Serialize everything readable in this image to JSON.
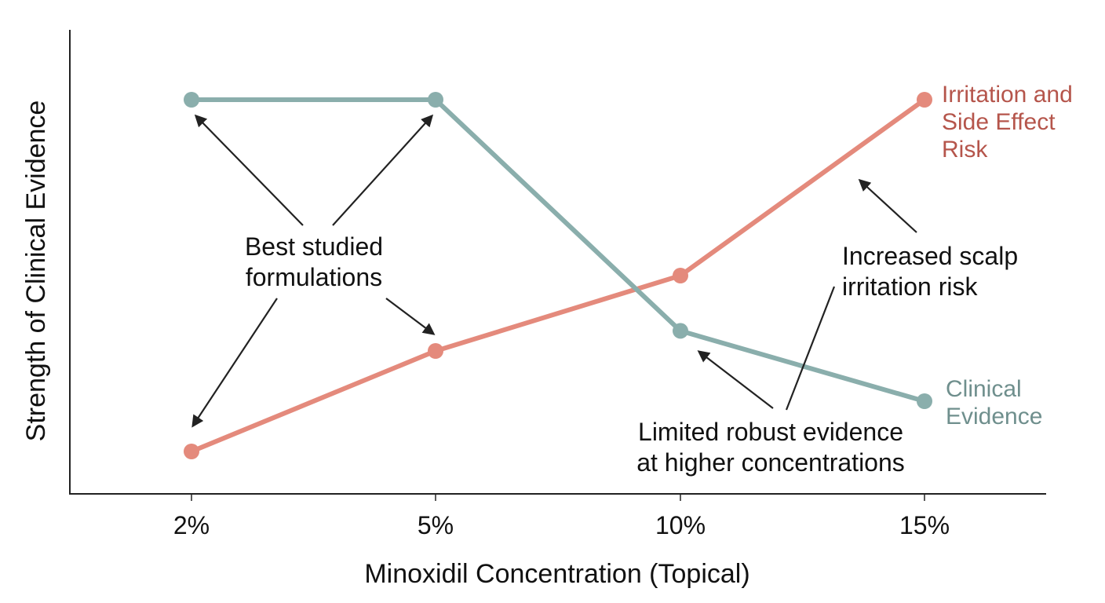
{
  "chart_data": {
    "type": "line",
    "categories": [
      "2%",
      "5%",
      "10%",
      "15%"
    ],
    "xlabel": "Minoxidil Concentration (Topical)",
    "ylabel": "Strength of Clinical Evidence",
    "ylim": [
      0,
      10
    ],
    "grid": false,
    "series": [
      {
        "name": "Clinical Evidence",
        "label_lines": [
          "Clinical",
          "Evidence"
        ],
        "color": "#8aaeac",
        "values": [
          9.0,
          9.0,
          4.4,
          3.0
        ]
      },
      {
        "name": "Irritation and Side Effect Risk",
        "label_lines": [
          "Irritation and",
          "Side Effect",
          "Risk"
        ],
        "color": "#e48a7c",
        "values": [
          2.0,
          4.0,
          5.5,
          9.0
        ]
      }
    ],
    "annotations": [
      {
        "lines": [
          "Best studied",
          "formulations"
        ]
      },
      {
        "lines": [
          "Increased scalp",
          "irritation risk"
        ]
      },
      {
        "lines": [
          "Limited robust evidence",
          "at higher concentrations"
        ]
      }
    ]
  },
  "colors": {
    "axis": "#222222",
    "evidence_label": "#6f8f8d",
    "risk_label": "#b5554b"
  }
}
